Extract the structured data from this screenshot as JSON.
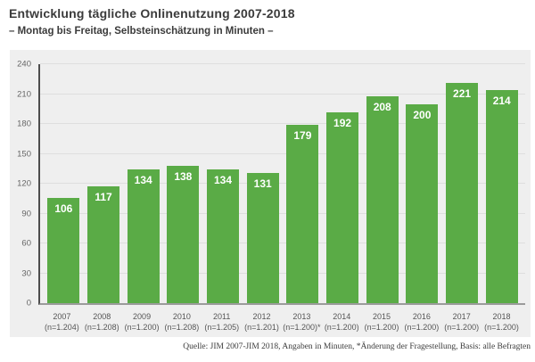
{
  "page": {
    "title": "Entwicklung tägliche Onlinenutzung 2007-2018",
    "subtitle": "– Montag bis Freitag, Selbsteinschätzung in Minuten –",
    "source": "Quelle: JIM 2007-JIM 2018, Angaben in Minuten, *Änderung der Fragestellung, Basis: alle Befragten"
  },
  "chart_data": {
    "type": "bar",
    "title": "Entwicklung tägliche Onlinenutzung 2007-2018",
    "subtitle": "– Montag bis Freitag, Selbsteinschätzung in Minuten –",
    "categories": [
      "2007",
      "2008",
      "2009",
      "2010",
      "2011",
      "2012",
      "2013",
      "2014",
      "2015",
      "2016",
      "2017",
      "2018"
    ],
    "n_labels": [
      "(n=1.204)",
      "(n=1.208)",
      "(n=1.200)",
      "(n=1.208)",
      "(n=1.205)",
      "(n=1.201)",
      "(n=1.200)*",
      "(n=1.200)",
      "(n=1.200)",
      "(n=1.200)",
      "(n=1.200)",
      "(n=1.200)"
    ],
    "values": [
      106,
      117,
      134,
      138,
      134,
      131,
      179,
      192,
      208,
      200,
      221,
      214
    ],
    "xlabel": "",
    "ylabel": "",
    "ylim": [
      0,
      240
    ],
    "ytick_step": 30,
    "grid": true,
    "legend": false,
    "bar_color": "#5aab46",
    "value_label_color": "#ffffff",
    "panel_bg": "#efefef",
    "source": "Quelle: JIM 2007-JIM 2018, Angaben in Minuten, *Änderung der Fragestellung, Basis: alle Befragten"
  }
}
